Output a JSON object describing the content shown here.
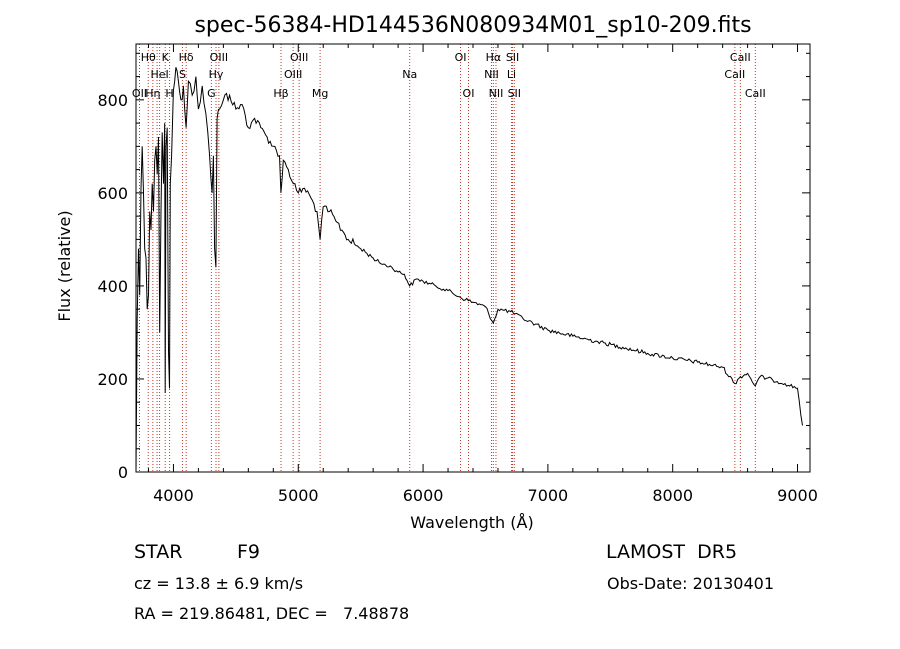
{
  "chart_data": {
    "type": "line",
    "title": "spec-56384-HD144536N080934M01_sp10-209.fits",
    "xlabel": "Wavelength (Å)",
    "ylabel": "Flux (relative)",
    "xlim": [
      3700,
      9100
    ],
    "ylim": [
      0,
      920
    ],
    "xticks": [
      {
        "value": 4000,
        "label": "4000"
      },
      {
        "value": 5000,
        "label": "5000"
      },
      {
        "value": 6000,
        "label": "6000"
      },
      {
        "value": 7000,
        "label": "7000"
      },
      {
        "value": 8000,
        "label": "8000"
      },
      {
        "value": 9000,
        "label": "9000"
      }
    ],
    "yticks": [
      {
        "value": 0,
        "label": "0"
      },
      {
        "value": 200,
        "label": "200"
      },
      {
        "value": 400,
        "label": "400"
      },
      {
        "value": 600,
        "label": "600"
      },
      {
        "value": 800,
        "label": "800"
      }
    ],
    "grid": false,
    "line_color": "#000000",
    "marker_line_color": "#c0392b",
    "spectrum": {
      "x": [
        3700,
        3710,
        3720,
        3730,
        3740,
        3750,
        3760,
        3770,
        3780,
        3790,
        3800,
        3810,
        3820,
        3830,
        3840,
        3850,
        3860,
        3870,
        3880,
        3890,
        3900,
        3910,
        3920,
        3930,
        3934,
        3940,
        3950,
        3960,
        3968,
        3975,
        3985,
        4000,
        4020,
        4040,
        4060,
        4080,
        4101,
        4120,
        4150,
        4180,
        4200,
        4230,
        4260,
        4290,
        4310,
        4320,
        4330,
        4340,
        4350,
        4370,
        4400,
        4450,
        4500,
        4550,
        4600,
        4650,
        4700,
        4750,
        4800,
        4850,
        4861,
        4880,
        4920,
        4960,
        5000,
        5050,
        5100,
        5150,
        5175,
        5200,
        5250,
        5300,
        5350,
        5400,
        5450,
        5500,
        5550,
        5600,
        5650,
        5700,
        5750,
        5800,
        5850,
        5893,
        5950,
        6000,
        6100,
        6200,
        6300,
        6400,
        6500,
        6563,
        6600,
        6700,
        6800,
        6900,
        7000,
        7200,
        7400,
        7600,
        7800,
        8000,
        8200,
        8400,
        8498,
        8542,
        8600,
        8662,
        8700,
        8800,
        8900,
        9000,
        9040
      ],
      "y": [
        0,
        330,
        480,
        380,
        610,
        700,
        600,
        480,
        460,
        350,
        380,
        560,
        520,
        620,
        560,
        670,
        700,
        640,
        720,
        300,
        560,
        730,
        620,
        750,
        170,
        700,
        740,
        260,
        180,
        620,
        680,
        820,
        870,
        840,
        800,
        830,
        740,
        840,
        810,
        850,
        780,
        830,
        770,
        680,
        600,
        680,
        480,
        440,
        760,
        780,
        800,
        810,
        780,
        790,
        740,
        760,
        740,
        720,
        700,
        680,
        600,
        670,
        650,
        620,
        600,
        610,
        590,
        560,
        500,
        570,
        560,
        540,
        520,
        500,
        490,
        480,
        470,
        460,
        450,
        445,
        440,
        430,
        425,
        400,
        415,
        410,
        400,
        390,
        375,
        365,
        355,
        320,
        350,
        345,
        330,
        318,
        305,
        292,
        280,
        268,
        255,
        245,
        236,
        225,
        190,
        205,
        212,
        185,
        205,
        198,
        190,
        180,
        100
      ]
    },
    "line_markers": [
      {
        "wavelength": 3728,
        "label": "OII",
        "row": 3
      },
      {
        "wavelength": 3798,
        "label": "Hθ",
        "row": 1
      },
      {
        "wavelength": 3835,
        "label": "Hη",
        "row": 3
      },
      {
        "wavelength": 3869,
        "label": "",
        "row": 0
      },
      {
        "wavelength": 3889,
        "label": "HeI",
        "row": 2
      },
      {
        "wavelength": 3934,
        "label": "K",
        "row": 1
      },
      {
        "wavelength": 3969,
        "label": "H",
        "row": 3
      },
      {
        "wavelength": 4072,
        "label": "S",
        "row": 2
      },
      {
        "wavelength": 4102,
        "label": "Hδ",
        "row": 1
      },
      {
        "wavelength": 4304,
        "label": "G",
        "row": 3
      },
      {
        "wavelength": 4341,
        "label": "Hγ",
        "row": 2
      },
      {
        "wavelength": 4364,
        "label": "OIII",
        "row": 1
      },
      {
        "wavelength": 4862,
        "label": "Hβ",
        "row": 3
      },
      {
        "wavelength": 4959,
        "label": "OIII",
        "row": 2
      },
      {
        "wavelength": 5007,
        "label": "OIII",
        "row": 1
      },
      {
        "wavelength": 5175,
        "label": "Mg",
        "row": 3
      },
      {
        "wavelength": 5893,
        "label": "Na",
        "row": 2
      },
      {
        "wavelength": 6300,
        "label": "OI",
        "row": 1
      },
      {
        "wavelength": 6364,
        "label": "OI",
        "row": 3
      },
      {
        "wavelength": 6548,
        "label": "NII",
        "row": 2
      },
      {
        "wavelength": 6563,
        "label": "Hα",
        "row": 1
      },
      {
        "wavelength": 6584,
        "label": "NII",
        "row": 3
      },
      {
        "wavelength": 6708,
        "label": "Li",
        "row": 2
      },
      {
        "wavelength": 6717,
        "label": "SII",
        "row": 1
      },
      {
        "wavelength": 6731,
        "label": "SII",
        "row": 3
      },
      {
        "wavelength": 8498,
        "label": "CaII",
        "row": 2
      },
      {
        "wavelength": 8542,
        "label": "CaII",
        "row": 1
      },
      {
        "wavelength": 8662,
        "label": "CaII",
        "row": 3
      }
    ]
  },
  "info": {
    "object_class": "STAR",
    "subclass": "F9",
    "survey": "LAMOST  DR5",
    "redshift": "cz = 13.8 ± 6.9 km/s",
    "obs_date": "Obs-Date: 20130401",
    "coords": "RA = 219.86481, DEC =   7.48878"
  }
}
